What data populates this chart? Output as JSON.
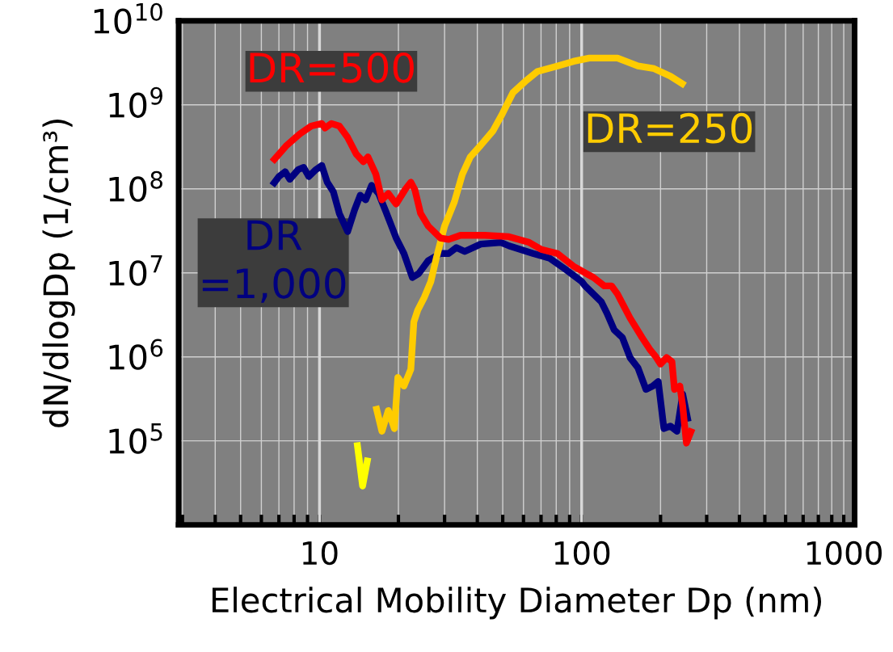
{
  "chart_data": {
    "type": "line",
    "xlabel": "Electrical Mobility Diameter Dp (nm)",
    "ylabel": "dN/dlogDp (1/cm³)",
    "log": "xy",
    "grid": true,
    "line_style": "solid",
    "marker": "none",
    "xlim": [
      2.9,
      1100
    ],
    "ylim": [
      10000,
      10000000000
    ],
    "xticks": [
      {
        "value": 3,
        "label": null
      },
      {
        "value": 4,
        "label": null
      },
      {
        "value": 5,
        "label": null
      },
      {
        "value": 6,
        "label": null
      },
      {
        "value": 7,
        "label": null
      },
      {
        "value": 8,
        "label": null
      },
      {
        "value": 9,
        "label": null
      },
      10,
      {
        "value": 20,
        "label": null
      },
      {
        "value": 30,
        "label": null
      },
      {
        "value": 40,
        "label": null
      },
      {
        "value": 50,
        "label": null
      },
      {
        "value": 60,
        "label": null
      },
      {
        "value": 70,
        "label": null
      },
      {
        "value": 80,
        "label": null
      },
      {
        "value": 90,
        "label": null
      },
      100,
      {
        "value": 200,
        "label": null
      },
      {
        "value": 300,
        "label": null
      },
      {
        "value": 400,
        "label": null
      },
      {
        "value": 500,
        "label": null
      },
      {
        "value": 600,
        "label": null
      },
      {
        "value": 700,
        "label": null
      },
      {
        "value": 800,
        "label": null
      },
      {
        "value": 900,
        "label": null
      },
      1000
    ],
    "yticks": [
      {
        "value": 10000,
        "label": null
      },
      {
        "value": 100000,
        "label": "10$^{5}$"
      },
      {
        "value": 1000000,
        "label": "10$^{6}$"
      },
      {
        "value": 10000000,
        "label": "10$^{7}$"
      },
      {
        "value": 100000000,
        "label": "10$^{8}$"
      },
      {
        "value": 1000000000,
        "label": "10$^{9}$"
      },
      {
        "value": 10000000000,
        "label": "10$^{10}$"
      }
    ],
    "series": [
      {
        "name": "DR=500",
        "color": "#ff0000",
        "x": [
          6.6,
          7.5,
          8.4,
          9.3,
          10.2,
          10.5,
          11.1,
          11.9,
          12.8,
          13.8,
          14.7,
          15.3,
          16.4,
          17.3,
          18.3,
          19.6,
          21.3,
          22.3,
          23.1,
          24.3,
          26.0,
          28.9,
          31.1,
          34.5,
          42.7,
          52.8,
          63.1,
          70.2,
          80.8,
          93.1,
          103,
          111,
          122,
          130,
          137,
          153,
          170,
          183,
          192,
          200,
          211,
          221,
          226,
          237,
          243,
          251,
          264
        ],
        "values": [
          210000000.0,
          330000000.0,
          450000000.0,
          560000000.0,
          600000000.0,
          530000000.0,
          600000000.0,
          560000000.0,
          410000000.0,
          260000000.0,
          210000000.0,
          240000000.0,
          150000000.0,
          74000000.0,
          88000000.0,
          66000000.0,
          100000000.0,
          120000000.0,
          98000000.0,
          51000000.0,
          36000000.0,
          26000000.0,
          25000000.0,
          28000000.0,
          28000000.0,
          27000000.0,
          23000000.0,
          19000000.0,
          17000000.0,
          12000000.0,
          10000000.0,
          8800000.0,
          7000000.0,
          7000000.0,
          5600000.0,
          2900000.0,
          1700000.0,
          1200000.0,
          1000000.0,
          820000.0,
          980000.0,
          880000.0,
          410000.0,
          450000.0,
          260000.0,
          94000.0,
          140000.0
        ]
      },
      {
        "name": "DR\n=1,000",
        "color": "#000080",
        "x": [
          6.6,
          7.0,
          7.4,
          7.7,
          8.3,
          8.7,
          9.1,
          9.7,
          10.2,
          10.7,
          11.3,
          11.9,
          12.8,
          13.6,
          14.3,
          15.0,
          15.8,
          16.8,
          17.9,
          19.6,
          21.0,
          22.6,
          23.9,
          26.0,
          28.9,
          31.1,
          33.3,
          35.8,
          41.2,
          49.2,
          52.8,
          65.3,
          75.3,
          86.8,
          100,
          103,
          119,
          125,
          133,
          143,
          153,
          164,
          176,
          187,
          196,
          206,
          218,
          231,
          243,
          255
        ],
        "values": [
          110000000.0,
          140000000.0,
          160000000.0,
          130000000.0,
          170000000.0,
          180000000.0,
          140000000.0,
          170000000.0,
          190000000.0,
          120000000.0,
          92000000.0,
          51000000.0,
          31000000.0,
          56000000.0,
          84000000.0,
          74000000.0,
          110000000.0,
          88000000.0,
          54000000.0,
          26000000.0,
          17000000.0,
          8800000.0,
          9800000.0,
          14000000.0,
          17000000.0,
          17000000.0,
          20000000.0,
          18000000.0,
          22000000.0,
          23000000.0,
          21000000.0,
          17000000.0,
          15000000.0,
          11000000.0,
          7900000.0,
          7000000.0,
          4500000.0,
          3300000.0,
          2100000.0,
          1700000.0,
          980000.0,
          740000.0,
          410000.0,
          450000.0,
          510000.0,
          140000.0,
          150000.0,
          130000.0,
          360000.0,
          170000.0
        ]
      },
      {
        "name": "DR=250",
        "color": "#ffcc00",
        "x": [
          16.4,
          17.3,
          18.3,
          19.3,
          19.9,
          21.0,
          22.3,
          22.9,
          23.7,
          25.1,
          26.6,
          27.9,
          30.0,
          32.7,
          35.1,
          37.6,
          41.2,
          45.9,
          49.9,
          54.7,
          60.9,
          67.8,
          80.8,
          93.1,
          107,
          137,
          164,
          189,
          218,
          248
        ],
        "values": [
          260000.0,
          130000.0,
          230000.0,
          140000.0,
          570000.0,
          450000.0,
          710000.0,
          2600000.0,
          3600000.0,
          5100000.0,
          7900000.0,
          15000000.0,
          36000000.0,
          70000000.0,
          150000000.0,
          240000000.0,
          330000000.0,
          490000000.0,
          790000000.0,
          1400000000.0,
          1900000000.0,
          2500000000.0,
          2900000000.0,
          3300000000.0,
          3600000000.0,
          3600000000.0,
          2900000000.0,
          2700000000.0,
          2200000000.0,
          1700000000.0
        ]
      },
      {
        "color": "#ffff00",
        "x": [
          13.9,
          14.6,
          15.3
        ],
        "values": [
          96000.0,
          29000.0,
          63000.0
        ]
      }
    ]
  }
}
